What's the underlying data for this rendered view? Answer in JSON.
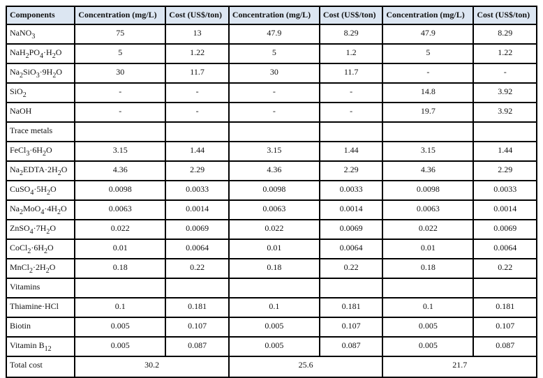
{
  "headers": [
    "Components",
    "Concentration (mg/L)",
    "Cost (US$/ton)",
    "Concentration (mg/L)",
    "Cost (US$/ton)",
    "Concentration (mg/L)",
    "Cost (US$/ton)"
  ],
  "rows": [
    {
      "name": [
        [
          "NaNO",
          0
        ],
        [
          "3",
          1
        ]
      ],
      "values": [
        "75",
        "13",
        "47.9",
        "8.29",
        "47.9",
        "8.29"
      ]
    },
    {
      "name": [
        [
          "NaH",
          0
        ],
        [
          "2",
          1
        ],
        [
          "PO",
          0
        ],
        [
          "4",
          1
        ],
        [
          "·H",
          0
        ],
        [
          "2",
          1
        ],
        [
          "O",
          0
        ]
      ],
      "values": [
        "5",
        "1.22",
        "5",
        "1.2",
        "5",
        "1.22"
      ]
    },
    {
      "name": [
        [
          "Na",
          0
        ],
        [
          "2",
          1
        ],
        [
          "SiO",
          0
        ],
        [
          "3",
          1
        ],
        [
          "·9H",
          0
        ],
        [
          "2",
          1
        ],
        [
          "O",
          0
        ]
      ],
      "values": [
        "30",
        "11.7",
        "30",
        "11.7",
        "-",
        "-"
      ]
    },
    {
      "name": [
        [
          "SiO",
          0
        ],
        [
          "2",
          1
        ]
      ],
      "values": [
        "-",
        "-",
        "-",
        "-",
        "14.8",
        "3.92"
      ]
    },
    {
      "name": [
        [
          "NaOH",
          0
        ]
      ],
      "values": [
        "-",
        "-",
        "-",
        "-",
        "19.7",
        "3.92"
      ]
    },
    {
      "name": [
        [
          "Trace metals",
          0
        ]
      ],
      "values": [
        "",
        "",
        "",
        "",
        "",
        ""
      ]
    },
    {
      "name": [
        [
          "FeCl",
          0
        ],
        [
          "3",
          1
        ],
        [
          "·6H",
          0
        ],
        [
          "2",
          1
        ],
        [
          "O",
          0
        ]
      ],
      "values": [
        "3.15",
        "1.44",
        "3.15",
        "1.44",
        "3.15",
        "1.44"
      ]
    },
    {
      "name": [
        [
          "Na",
          0
        ],
        [
          "2",
          1
        ],
        [
          "EDTA·2H",
          0
        ],
        [
          "2",
          1
        ],
        [
          "O",
          0
        ]
      ],
      "values": [
        "4.36",
        "2.29",
        "4.36",
        "2.29",
        "4.36",
        "2.29"
      ]
    },
    {
      "name": [
        [
          "CuSO",
          0
        ],
        [
          "4",
          1
        ],
        [
          "·5H",
          0
        ],
        [
          "2",
          1
        ],
        [
          "O",
          0
        ]
      ],
      "values": [
        "0.0098",
        "0.0033",
        "0.0098",
        "0.0033",
        "0.0098",
        "0.0033"
      ]
    },
    {
      "name": [
        [
          "Na",
          0
        ],
        [
          "2",
          1
        ],
        [
          "MoO",
          0
        ],
        [
          "4",
          1
        ],
        [
          "·4H",
          0
        ],
        [
          "2",
          1
        ],
        [
          "O",
          0
        ]
      ],
      "values": [
        "0.0063",
        "0.0014",
        "0.0063",
        "0.0014",
        "0.0063",
        "0.0014"
      ]
    },
    {
      "name": [
        [
          "ZnSO",
          0
        ],
        [
          "4",
          1
        ],
        [
          "·7H",
          0
        ],
        [
          "2",
          1
        ],
        [
          "O",
          0
        ]
      ],
      "values": [
        "0.022",
        "0.0069",
        "0.022",
        "0.0069",
        "0.022",
        "0.0069"
      ]
    },
    {
      "name": [
        [
          "CoCl",
          0
        ],
        [
          "2",
          1
        ],
        [
          "·6H",
          0
        ],
        [
          "2",
          1
        ],
        [
          "O",
          0
        ]
      ],
      "values": [
        "0.01",
        "0.0064",
        "0.01",
        "0.0064",
        "0.01",
        "0.0064"
      ]
    },
    {
      "name": [
        [
          "MnCl",
          0
        ],
        [
          "2",
          1
        ],
        [
          "·2H",
          0
        ],
        [
          "2",
          1
        ],
        [
          "O",
          0
        ]
      ],
      "values": [
        "0.18",
        "0.22",
        "0.18",
        "0.22",
        "0.18",
        "0.22"
      ]
    },
    {
      "name": [
        [
          "Vitamins",
          0
        ]
      ],
      "values": [
        "",
        "",
        "",
        "",
        "",
        ""
      ]
    },
    {
      "name": [
        [
          "Thiamine·HCl",
          0
        ]
      ],
      "values": [
        "0.1",
        "0.181",
        "0.1",
        "0.181",
        "0.1",
        "0.181"
      ]
    },
    {
      "name": [
        [
          "Biotin",
          0
        ]
      ],
      "values": [
        "0.005",
        "0.107",
        "0.005",
        "0.107",
        "0.005",
        "0.107"
      ]
    },
    {
      "name": [
        [
          "Vitamin B",
          0
        ],
        [
          "12",
          1
        ]
      ],
      "values": [
        "0.005",
        "0.087",
        "0.005",
        "0.087",
        "0.005",
        "0.087"
      ]
    }
  ],
  "total": {
    "label": "Total cost",
    "values": [
      "30.2",
      "25.6",
      "21.7"
    ]
  },
  "colors": {
    "header_bg": "#dce6f2"
  }
}
